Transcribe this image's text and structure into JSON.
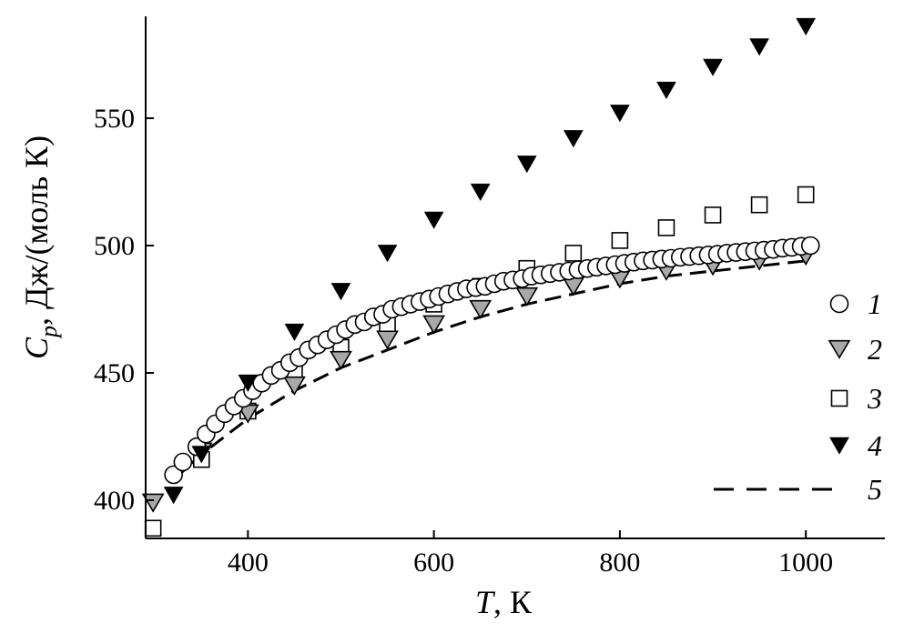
{
  "chart_data": {
    "type": "scatter",
    "xlabel": {
      "var": "T",
      "unit": ", К"
    },
    "ylabel": {
      "var": "C",
      "sub": "p",
      "unit": ", Дж/(моль К)"
    },
    "xlim": [
      290,
      1085
    ],
    "ylim": [
      385,
      590
    ],
    "x_ticks": [
      400,
      600,
      800,
      1000
    ],
    "y_ticks": [
      400,
      450,
      500,
      550
    ],
    "grid": false,
    "legend_position": "right",
    "series": [
      {
        "name": "1",
        "marker": "circle-open",
        "points": [
          [
            320,
            410
          ],
          [
            330,
            415
          ],
          [
            345,
            421
          ],
          [
            355,
            426
          ],
          [
            365,
            430
          ],
          [
            375,
            434
          ],
          [
            385,
            437
          ],
          [
            395,
            440
          ],
          [
            405,
            443
          ],
          [
            415,
            446
          ],
          [
            425,
            449
          ],
          [
            435,
            451
          ],
          [
            445,
            454
          ],
          [
            455,
            456
          ],
          [
            465,
            459
          ],
          [
            475,
            461
          ],
          [
            485,
            463
          ],
          [
            495,
            465
          ],
          [
            505,
            467
          ],
          [
            515,
            469
          ],
          [
            525,
            470
          ],
          [
            535,
            472
          ],
          [
            545,
            473
          ],
          [
            555,
            475
          ],
          [
            565,
            476
          ],
          [
            575,
            477
          ],
          [
            585,
            478
          ],
          [
            595,
            479
          ],
          [
            605,
            480
          ],
          [
            615,
            481
          ],
          [
            625,
            482
          ],
          [
            635,
            483
          ],
          [
            645,
            483.5
          ],
          [
            655,
            484
          ],
          [
            665,
            485
          ],
          [
            675,
            486
          ],
          [
            685,
            486.5
          ],
          [
            695,
            487
          ],
          [
            705,
            488
          ],
          [
            715,
            488.5
          ],
          [
            725,
            489
          ],
          [
            735,
            489.5
          ],
          [
            745,
            490
          ],
          [
            755,
            490.5
          ],
          [
            765,
            491
          ],
          [
            775,
            491.5
          ],
          [
            785,
            492
          ],
          [
            795,
            492.5
          ],
          [
            805,
            493
          ],
          [
            815,
            493.5
          ],
          [
            825,
            494
          ],
          [
            835,
            494.3
          ],
          [
            845,
            494.7
          ],
          [
            855,
            495
          ],
          [
            865,
            495.4
          ],
          [
            875,
            495.7
          ],
          [
            885,
            496
          ],
          [
            895,
            496.3
          ],
          [
            905,
            496.6
          ],
          [
            915,
            497
          ],
          [
            925,
            497.3
          ],
          [
            935,
            497.6
          ],
          [
            945,
            497.9
          ],
          [
            955,
            498.2
          ],
          [
            965,
            498.5
          ],
          [
            975,
            499
          ],
          [
            985,
            499.3
          ],
          [
            995,
            499.7
          ],
          [
            1005,
            500
          ]
        ]
      },
      {
        "name": "2",
        "marker": "triangle-down-gray",
        "points": [
          [
            298,
            399
          ],
          [
            350,
            419
          ],
          [
            400,
            434
          ],
          [
            450,
            445
          ],
          [
            500,
            455
          ],
          [
            550,
            463
          ],
          [
            600,
            469
          ],
          [
            650,
            475
          ],
          [
            700,
            480
          ],
          [
            750,
            484
          ],
          [
            800,
            487
          ],
          [
            850,
            490
          ],
          [
            900,
            492
          ],
          [
            950,
            494
          ],
          [
            1000,
            496
          ]
        ]
      },
      {
        "name": "3",
        "marker": "square-open",
        "points": [
          [
            298,
            389
          ],
          [
            350,
            416
          ],
          [
            400,
            435
          ],
          [
            450,
            450
          ],
          [
            500,
            460
          ],
          [
            550,
            469
          ],
          [
            600,
            477
          ],
          [
            650,
            484
          ],
          [
            700,
            491
          ],
          [
            750,
            497
          ],
          [
            800,
            502
          ],
          [
            850,
            507
          ],
          [
            900,
            512
          ],
          [
            950,
            516
          ],
          [
            1000,
            520
          ]
        ]
      },
      {
        "name": "4",
        "marker": "triangle-down-filled",
        "points": [
          [
            320,
            402
          ],
          [
            350,
            418
          ],
          [
            400,
            446
          ],
          [
            450,
            466
          ],
          [
            500,
            482
          ],
          [
            550,
            497
          ],
          [
            600,
            510
          ],
          [
            650,
            521
          ],
          [
            700,
            532
          ],
          [
            750,
            542
          ],
          [
            800,
            552
          ],
          [
            850,
            561
          ],
          [
            900,
            570
          ],
          [
            950,
            578
          ],
          [
            1000,
            586
          ]
        ]
      },
      {
        "name": "5",
        "marker": "dashed-line",
        "points": [
          [
            320,
            408
          ],
          [
            350,
            418
          ],
          [
            400,
            432
          ],
          [
            450,
            443
          ],
          [
            500,
            452
          ],
          [
            550,
            459
          ],
          [
            600,
            466
          ],
          [
            650,
            472
          ],
          [
            700,
            477
          ],
          [
            750,
            481
          ],
          [
            800,
            485
          ],
          [
            850,
            488
          ],
          [
            900,
            490
          ],
          [
            950,
            492
          ],
          [
            1000,
            494
          ]
        ]
      }
    ]
  }
}
